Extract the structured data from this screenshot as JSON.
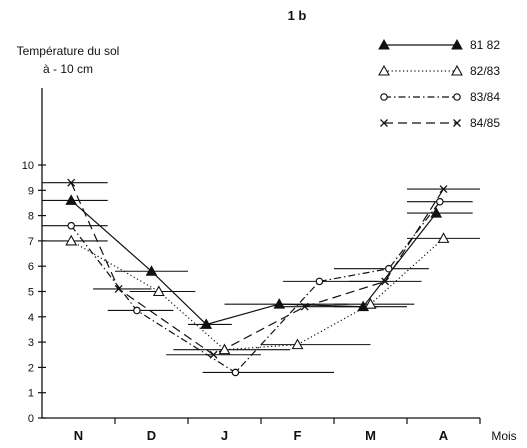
{
  "chart_data": {
    "type": "line",
    "title": "1 b",
    "ylabel_lines": [
      "Température du sol",
      "à - 10 cm"
    ],
    "xlabel": "Mois",
    "categories": [
      "N",
      "D",
      "J",
      "F",
      "M",
      "A"
    ],
    "ylim": [
      0,
      10
    ],
    "yticks": [
      0,
      1,
      2,
      3,
      4,
      5,
      6,
      7,
      8,
      9,
      10
    ],
    "grid": false,
    "legend_position": "top-right",
    "series": [
      {
        "name": "81 82",
        "marker": "filled-triangle",
        "dash": "solid",
        "points": [
          {
            "x": 0.4,
            "y": 8.6,
            "err": [
              0.0,
              0.9
            ]
          },
          {
            "x": 1.5,
            "y": 5.8,
            "err": [
              1.0,
              2.0
            ]
          },
          {
            "x": 2.25,
            "y": 3.7,
            "err": [
              2.0,
              2.6
            ]
          },
          {
            "x": 3.25,
            "y": 4.5,
            "err": [
              2.5,
              4.2
            ]
          },
          {
            "x": 4.4,
            "y": 4.4,
            "err": [
              4.0,
              5.0
            ]
          },
          {
            "x": 5.4,
            "y": 8.1,
            "err": [
              5.0,
              5.9
            ]
          }
        ]
      },
      {
        "name": "82/83",
        "marker": "open-triangle",
        "dash": "dotted",
        "points": [
          {
            "x": 0.4,
            "y": 7.0,
            "err": [
              0.0,
              0.9
            ]
          },
          {
            "x": 1.6,
            "y": 5.0,
            "err": [
              1.2,
              2.1
            ]
          },
          {
            "x": 2.5,
            "y": 2.7,
            "err": [
              1.8,
              3.4
            ]
          },
          {
            "x": 3.5,
            "y": 2.9,
            "err": [
              3.0,
              4.5
            ]
          },
          {
            "x": 4.5,
            "y": 4.5,
            "err": [
              4.0,
              5.1
            ]
          },
          {
            "x": 5.5,
            "y": 7.1,
            "err": [
              5.0,
              6.0
            ]
          }
        ]
      },
      {
        "name": "83/84",
        "marker": "open-circle",
        "dash": "dashdot",
        "points": [
          {
            "x": 0.4,
            "y": 7.6,
            "err": [
              0.0,
              0.9
            ]
          },
          {
            "x": 1.3,
            "y": 4.25,
            "err": [
              0.9,
              1.8
            ]
          },
          {
            "x": 2.65,
            "y": 1.8,
            "err": [
              2.2,
              4.0
            ]
          },
          {
            "x": 3.8,
            "y": 5.4,
            "err": [
              3.3,
              4.6
            ]
          },
          {
            "x": 4.75,
            "y": 5.9,
            "err": [
              4.0,
              5.3
            ]
          },
          {
            "x": 5.45,
            "y": 8.55,
            "err": [
              5.0,
              5.9
            ]
          }
        ]
      },
      {
        "name": "84/85",
        "marker": "cross",
        "dash": "dashed",
        "points": [
          {
            "x": 0.4,
            "y": 9.3,
            "err": [
              0.0,
              0.9
            ]
          },
          {
            "x": 1.05,
            "y": 5.1,
            "err": [
              0.7,
              1.5
            ]
          },
          {
            "x": 2.35,
            "y": 2.5,
            "err": [
              1.7,
              3.0
            ]
          },
          {
            "x": 3.6,
            "y": 4.4,
            "err": [
              3.2,
              4.6
            ]
          },
          {
            "x": 4.7,
            "y": 5.4,
            "err": [
              4.2,
              5.2
            ]
          },
          {
            "x": 5.5,
            "y": 9.05,
            "err": [
              5.0,
              6.0
            ]
          }
        ]
      }
    ]
  }
}
